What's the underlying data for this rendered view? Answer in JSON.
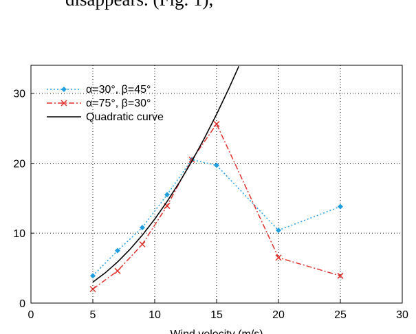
{
  "text_above": "disappears. (Fig. 1),",
  "chart_data": {
    "type": "line",
    "xlabel": "Wind velocity (m/s)",
    "xlim": [
      0,
      30
    ],
    "xticks": [
      0,
      5,
      10,
      15,
      20,
      25,
      30
    ],
    "ylim": [
      0,
      34
    ],
    "yticks": [
      0,
      10,
      20,
      30
    ],
    "grid": true,
    "legend": "upper-left",
    "series": [
      {
        "name": "α=30°, β=45°",
        "color": "#1f9fe0",
        "style": "dotted",
        "marker": "diamond",
        "x": [
          5,
          7,
          9,
          11,
          13,
          15,
          20,
          25
        ],
        "values": [
          3.9,
          7.5,
          10.8,
          15.5,
          20.5,
          19.7,
          10.4,
          13.8
        ]
      },
      {
        "name": "α=75°, β=30°",
        "color": "#e0302a",
        "style": "dashdot",
        "marker": "cross",
        "x": [
          5,
          7,
          9,
          11,
          13,
          15,
          20,
          25
        ],
        "values": [
          2,
          4.6,
          8.4,
          13.9,
          20.5,
          25.6,
          6.5,
          3.9
        ]
      },
      {
        "name": "Quadratic curve",
        "color": "#000000",
        "style": "solid",
        "marker": "none",
        "x": [
          5,
          6,
          7,
          8,
          9,
          10,
          11,
          12,
          13,
          14,
          15,
          16,
          16.8
        ],
        "values": [
          3,
          4.32,
          5.88,
          7.68,
          9.72,
          12,
          14.52,
          17.28,
          20.28,
          23.52,
          27,
          30.72,
          33.87
        ]
      }
    ]
  }
}
